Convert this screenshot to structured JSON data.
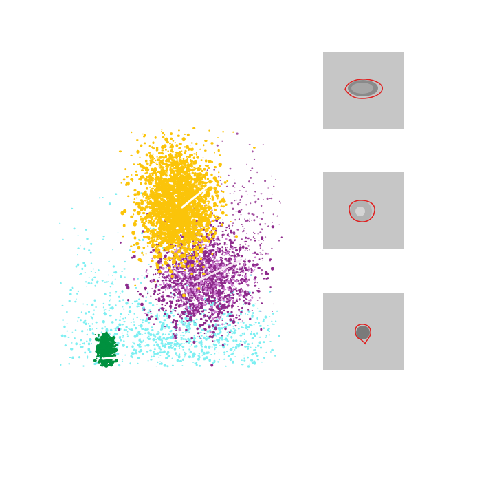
{
  "colors": {
    "background": "#ffffff",
    "cluster_yellow": "#fbc40a",
    "cluster_purple": "#8e2a8c",
    "cluster_purple_light": "#cc7fcf",
    "cluster_cyan": "#7eeff2",
    "cluster_green": "#00913f",
    "pca_line": "#f6e6f4",
    "thumb_bg": "#c6c6c6",
    "contour": "#e02020"
  },
  "clusters": [
    {
      "id": "yellow",
      "color_key": "cluster_yellow"
    },
    {
      "id": "purple",
      "color_key": "cluster_purple"
    },
    {
      "id": "cyan",
      "color_key": "cluster_cyan"
    },
    {
      "id": "green",
      "color_key": "cluster_green"
    }
  ],
  "thumbnails": [
    {
      "id": "elongated-cell",
      "shape": "ellipse"
    },
    {
      "id": "round-cell",
      "shape": "circle"
    },
    {
      "id": "small-cell",
      "shape": "small"
    }
  ]
}
